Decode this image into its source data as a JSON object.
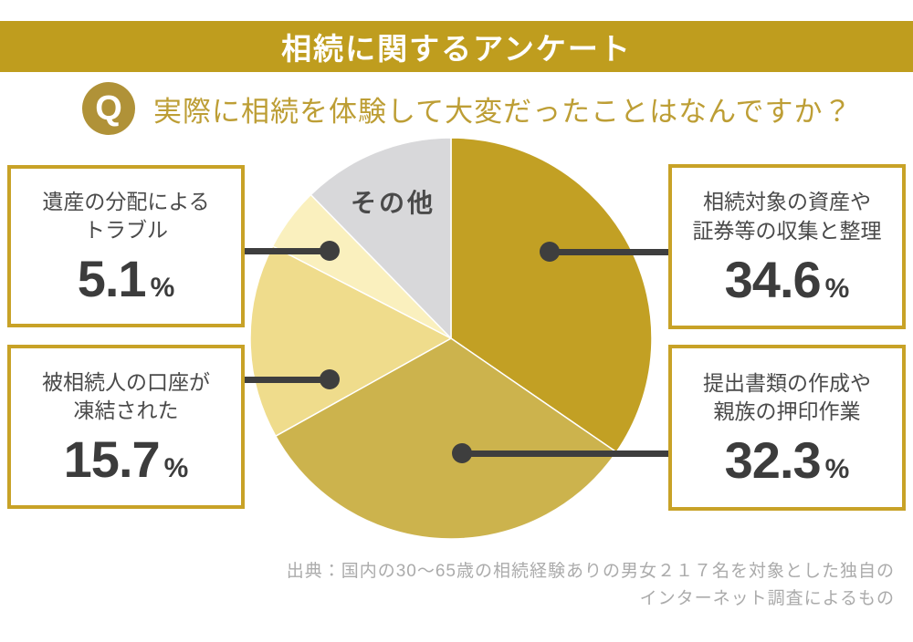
{
  "header": {
    "title": "相続に関するアンケート",
    "q_badge": "Q",
    "question": "実際に相続を体験して大変だったことはなんですか？"
  },
  "chart_data": {
    "type": "pie",
    "title": "実際に相続を体験して大変だったことはなんですか？",
    "unit": "%",
    "start_angle_deg": -90,
    "direction": "clockwise",
    "legend_position": "callout-boxes",
    "slices": [
      {
        "label": "相続対象の資産や証券等の収集と整理",
        "value": 34.6,
        "color": "#C2A024"
      },
      {
        "label": "提出書類の作成や親族の押印作業",
        "value": 32.3,
        "color": "#CCB34D"
      },
      {
        "label": "被相続人の口座が凍結された",
        "value": 15.7,
        "color": "#EFDC8C"
      },
      {
        "label": "遺産の分配によるトラブル",
        "value": 5.1,
        "color": "#FAF0BE"
      },
      {
        "label": "その他",
        "value": 12.3,
        "color": "#D8D8DA"
      }
    ]
  },
  "callouts": [
    {
      "id": "estate-division-trouble",
      "line1": "遺産の分配による",
      "line2": "トラブル",
      "value": "5.1",
      "unit": "%"
    },
    {
      "id": "frozen-account",
      "line1": "被相続人の口座が",
      "line2": "凍結された",
      "value": "15.7",
      "unit": "%"
    },
    {
      "id": "asset-collection",
      "line1": "相続対象の資産や",
      "line2": "証券等の収集と整理",
      "value": "34.6",
      "unit": "%"
    },
    {
      "id": "document-preparation",
      "line1": "提出書類の作成や",
      "line2": "親族の押印作業",
      "value": "32.3",
      "unit": "%"
    }
  ],
  "footer": {
    "line1": "出典：国内の30〜65歳の相続経験ありの男女２１７名を対象とした独自の",
    "line2": "インターネット調査によるもの"
  },
  "colors": {
    "banner_bg": "#BF9D1E",
    "banner_text": "#FFFFFF",
    "q_badge_bg": "#B09238",
    "question_text": "#BD9E35",
    "box_border": "#C8A227",
    "label_text": "#4A4A4A",
    "value_text": "#3C3C3C",
    "connector": "#3E3E3E",
    "footer_text": "#ABABAB",
    "other_slice_label_text": "#4A4A4A"
  }
}
